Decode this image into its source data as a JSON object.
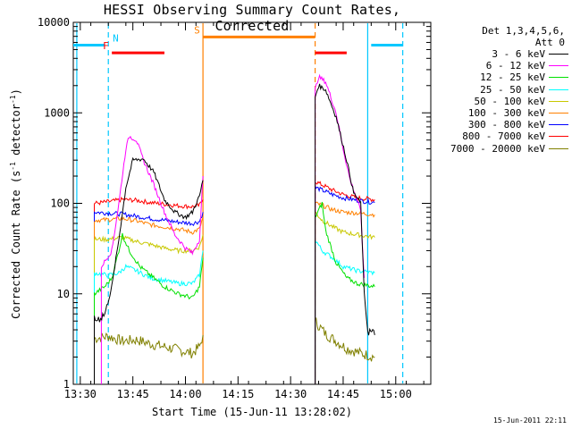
{
  "chart_data": {
    "type": "line",
    "title": "HESSI Observing Summary Count Rates, Corrected",
    "xlabel": "Start Time (15-Jun-11 13:28:02)",
    "ylabel": "Corrected Count Rate (s^-1 detector^-1)",
    "y_scale": "log",
    "ylim": [
      1,
      10000
    ],
    "xlim": [
      "13:28",
      "15:10"
    ],
    "x_ticks": [
      "13:30",
      "13:45",
      "14:00",
      "14:15",
      "14:30",
      "14:45",
      "15:00"
    ],
    "y_ticks": [
      "1",
      "10",
      "100",
      "1000",
      "10000"
    ],
    "legend": {
      "header": [
        "Det 1,3,4,5,6,",
        "Att 0"
      ],
      "position": "right"
    },
    "flags": [
      {
        "label": "N",
        "color": "#00c8ff",
        "segments": [
          [
            "13:28",
            "13:37"
          ],
          [
            "14:53",
            "15:02"
          ]
        ],
        "level": 5600
      },
      {
        "label": "F",
        "color": "#ff0000",
        "segments": [
          [
            "13:39",
            "13:54"
          ],
          [
            "14:37",
            "14:46"
          ]
        ],
        "level": 4600
      },
      {
        "label": "S",
        "color": "#ff8000",
        "segments": [
          [
            "14:05",
            "14:37"
          ]
        ],
        "level": 6900
      }
    ],
    "vertical_markers": [
      {
        "time": "13:38",
        "color": "#00c8ff",
        "style": "dashed"
      },
      {
        "time": "14:05",
        "color": "#ff8000",
        "style": "solid"
      },
      {
        "time": "14:37",
        "color": "#ff8000",
        "style": "dashed"
      },
      {
        "time": "14:52",
        "color": "#00c8ff",
        "style": "solid"
      },
      {
        "time": "15:02",
        "color": "#00c8ff",
        "style": "dashed"
      },
      {
        "time": "13:29",
        "color": "#00c8ff",
        "style": "solid"
      }
    ],
    "series": [
      {
        "name": "3 - 6 keV",
        "color": "#000000",
        "segments": [
          [
            [
              "13:34",
              5
            ],
            [
              "13:37",
              6
            ],
            [
              "13:39",
              12
            ],
            [
              "13:41",
              40
            ],
            [
              "13:43",
              150
            ],
            [
              "13:45",
              300
            ],
            [
              "13:48",
              310
            ],
            [
              "13:51",
              220
            ],
            [
              "13:54",
              110
            ],
            [
              "13:57",
              80
            ],
            [
              "14:00",
              70
            ],
            [
              "14:02",
              80
            ],
            [
              "14:04",
              120
            ],
            [
              "14:05",
              180
            ]
          ],
          [
            [
              "14:37",
              1500
            ],
            [
              "14:38",
              2000
            ],
            [
              "14:40",
              1800
            ],
            [
              "14:43",
              900
            ],
            [
              "14:46",
              300
            ],
            [
              "14:48",
              130
            ],
            [
              "14:50",
              100
            ],
            [
              "14:51",
              10
            ],
            [
              "14:52",
              4
            ],
            [
              "14:54",
              3.5
            ]
          ]
        ]
      },
      {
        "name": "6 - 12 keV",
        "color": "#ff00ff",
        "segments": [
          [
            [
              "13:36",
              20
            ],
            [
              "13:39",
              30
            ],
            [
              "13:41",
              100
            ],
            [
              "13:43",
              400
            ],
            [
              "13:44",
              550
            ],
            [
              "13:46",
              500
            ],
            [
              "13:48",
              300
            ],
            [
              "13:51",
              160
            ],
            [
              "13:54",
              80
            ],
            [
              "13:57",
              45
            ],
            [
              "14:00",
              32
            ],
            [
              "14:02",
              28
            ],
            [
              "14:04",
              40
            ],
            [
              "14:05",
              200
            ]
          ],
          [
            [
              "14:37",
              1800
            ],
            [
              "14:38",
              2500
            ],
            [
              "14:40",
              2200
            ],
            [
              "14:43",
              1000
            ],
            [
              "14:45",
              400
            ],
            [
              "14:47",
              180
            ],
            [
              "14:49",
              110
            ],
            [
              "14:50",
              80
            ],
            [
              "14:51",
              15
            ]
          ]
        ]
      },
      {
        "name": "12 - 25 keV",
        "color": "#00e000",
        "segments": [
          [
            [
              "13:34",
              10
            ],
            [
              "13:37",
              12
            ],
            [
              "13:39",
              15
            ],
            [
              "13:41",
              30
            ],
            [
              "13:42",
              45
            ],
            [
              "13:44",
              30
            ],
            [
              "13:47",
              20
            ],
            [
              "13:50",
              16
            ],
            [
              "13:54",
              12
            ],
            [
              "13:58",
              10
            ],
            [
              "14:02",
              9
            ],
            [
              "14:04",
              12
            ],
            [
              "14:05",
              25
            ]
          ],
          [
            [
              "14:37",
              70
            ],
            [
              "14:39",
              100
            ],
            [
              "14:40",
              50
            ],
            [
              "14:43",
              22
            ],
            [
              "14:46",
              15
            ],
            [
              "14:49",
              13
            ],
            [
              "14:54",
              12
            ]
          ]
        ]
      },
      {
        "name": "25 - 50 keV",
        "color": "#00ffff",
        "segments": [
          [
            [
              "13:34",
              17
            ],
            [
              "13:38",
              16
            ],
            [
              "13:41",
              17
            ],
            [
              "13:43",
              20
            ],
            [
              "13:46",
              18
            ],
            [
              "13:50",
              15
            ],
            [
              "13:54",
              14
            ],
            [
              "13:58",
              13
            ],
            [
              "14:02",
              13
            ],
            [
              "14:04",
              16
            ],
            [
              "14:05",
              30
            ]
          ],
          [
            [
              "14:37",
              40
            ],
            [
              "14:39",
              30
            ],
            [
              "14:42",
              25
            ],
            [
              "14:45",
              20
            ],
            [
              "14:49",
              18
            ],
            [
              "14:54",
              17
            ]
          ]
        ]
      },
      {
        "name": "50 - 100 keV",
        "color": "#c8c800",
        "segments": [
          [
            [
              "13:34",
              40
            ],
            [
              "13:38",
              40
            ],
            [
              "13:42",
              42
            ],
            [
              "13:46",
              38
            ],
            [
              "13:50",
              35
            ],
            [
              "13:54",
              32
            ],
            [
              "13:58",
              30
            ],
            [
              "14:02",
              30
            ],
            [
              "14:04",
              33
            ],
            [
              "14:05",
              45
            ]
          ],
          [
            [
              "14:37",
              80
            ],
            [
              "14:39",
              65
            ],
            [
              "14:42",
              55
            ],
            [
              "14:45",
              48
            ],
            [
              "14:49",
              45
            ],
            [
              "14:54",
              42
            ]
          ]
        ]
      },
      {
        "name": "100 - 300 keV",
        "color": "#ff8000",
        "segments": [
          [
            [
              "13:34",
              65
            ],
            [
              "13:38",
              66
            ],
            [
              "13:42",
              68
            ],
            [
              "13:46",
              64
            ],
            [
              "13:50",
              58
            ],
            [
              "13:54",
              55
            ],
            [
              "13:58",
              52
            ],
            [
              "14:02",
              48
            ],
            [
              "14:04",
              52
            ],
            [
              "14:05",
              70
            ]
          ],
          [
            [
              "14:37",
              100
            ],
            [
              "14:39",
              95
            ],
            [
              "14:42",
              85
            ],
            [
              "14:45",
              80
            ],
            [
              "14:49",
              78
            ],
            [
              "14:54",
              75
            ]
          ]
        ]
      },
      {
        "name": "300 - 800 keV",
        "color": "#0000ff",
        "segments": [
          [
            [
              "13:34",
              80
            ],
            [
              "13:38",
              78
            ],
            [
              "13:42",
              76
            ],
            [
              "13:46",
              72
            ],
            [
              "13:50",
              68
            ],
            [
              "13:54",
              65
            ],
            [
              "13:58",
              62
            ],
            [
              "14:02",
              60
            ],
            [
              "14:04",
              63
            ],
            [
              "14:05",
              80
            ]
          ],
          [
            [
              "14:37",
              150
            ],
            [
              "14:39",
              140
            ],
            [
              "14:42",
              125
            ],
            [
              "14:45",
              115
            ],
            [
              "14:49",
              108
            ],
            [
              "14:54",
              102
            ]
          ]
        ]
      },
      {
        "name": "800 - 7000 keV",
        "color": "#ff0000",
        "segments": [
          [
            [
              "13:34",
              100
            ],
            [
              "13:38",
              104
            ],
            [
              "13:42",
              110
            ],
            [
              "13:46",
              108
            ],
            [
              "13:50",
              102
            ],
            [
              "13:54",
              98
            ],
            [
              "13:58",
              94
            ],
            [
              "14:02",
              92
            ],
            [
              "14:04",
              95
            ],
            [
              "14:05",
              110
            ]
          ],
          [
            [
              "14:37",
              175
            ],
            [
              "14:39",
              160
            ],
            [
              "14:42",
              140
            ],
            [
              "14:45",
              125
            ],
            [
              "14:49",
              115
            ],
            [
              "14:54",
              110
            ]
          ]
        ]
      },
      {
        "name": "7000 - 20000 keV",
        "color": "#808000",
        "segments": [
          [
            [
              "13:34",
              3.2
            ],
            [
              "13:38",
              3.4
            ],
            [
              "13:42",
              3.0
            ],
            [
              "13:46",
              3.1
            ],
            [
              "13:50",
              2.8
            ],
            [
              "13:54",
              2.6
            ],
            [
              "13:58",
              2.4
            ],
            [
              "14:02",
              2.2
            ],
            [
              "14:04",
              2.6
            ],
            [
              "14:05",
              3.5
            ]
          ],
          [
            [
              "14:37",
              5
            ],
            [
              "14:40",
              3.6
            ],
            [
              "14:43",
              3.0
            ],
            [
              "14:46",
              2.5
            ],
            [
              "14:50",
              2.2
            ],
            [
              "14:54",
              2.0
            ]
          ]
        ]
      }
    ]
  },
  "footer": {
    "timestamp": "15-Jun-2011 22:11"
  }
}
